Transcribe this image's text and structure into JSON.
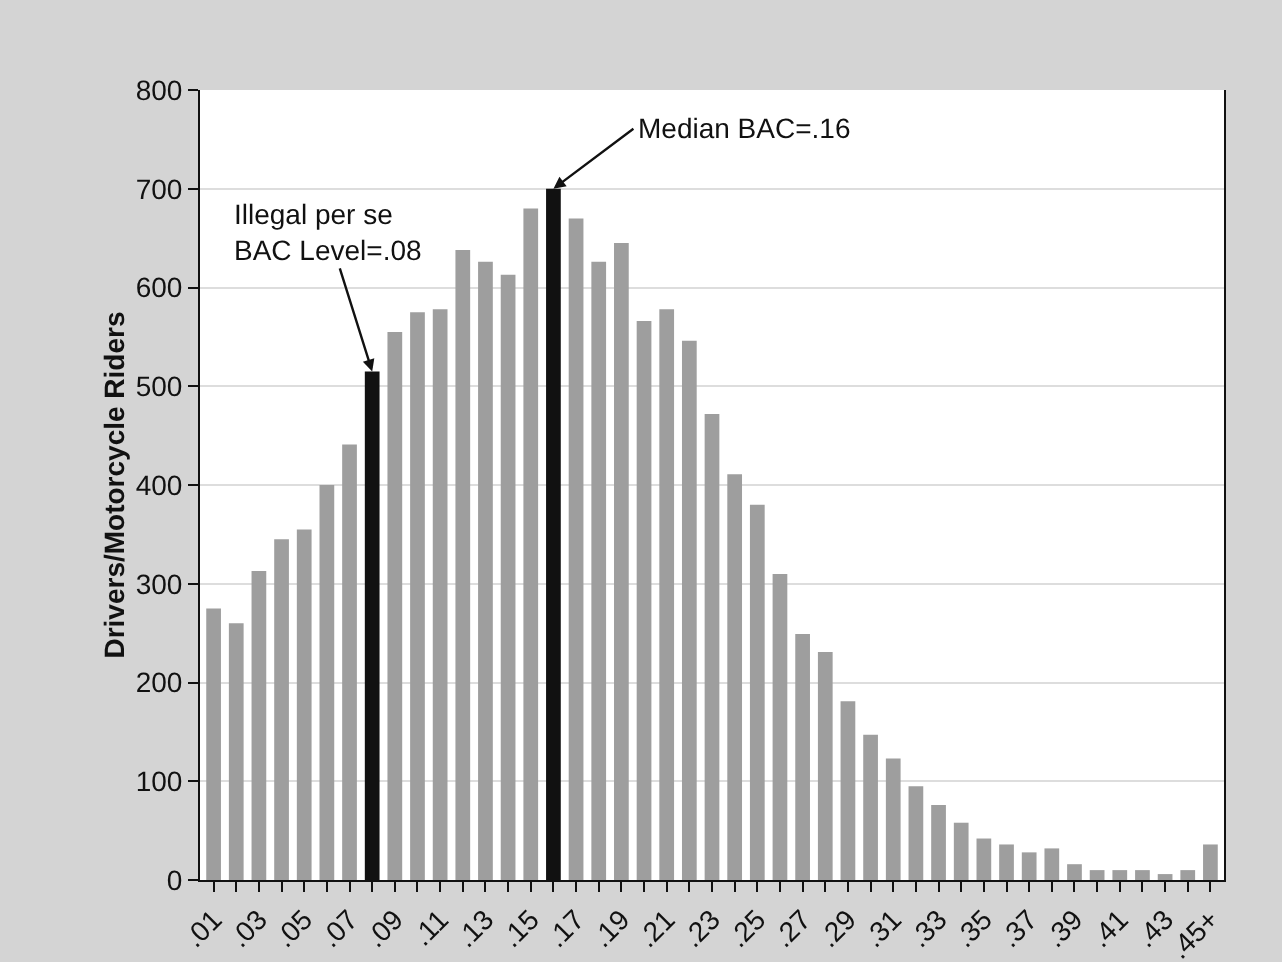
{
  "chart_data": {
    "type": "bar",
    "ylabel": "Drivers/Motorcycle Riders",
    "x": [
      0.01,
      0.02,
      0.03,
      0.04,
      0.05,
      0.06,
      0.07,
      0.08,
      0.09,
      0.1,
      0.11,
      0.12,
      0.13,
      0.14,
      0.15,
      0.16,
      0.17,
      0.18,
      0.19,
      0.2,
      0.21,
      0.22,
      0.23,
      0.24,
      0.25,
      0.26,
      0.27,
      0.28,
      0.29,
      0.3,
      0.31,
      0.32,
      0.33,
      0.34,
      0.35,
      0.36,
      0.37,
      0.38,
      0.39,
      0.4,
      0.41,
      0.42,
      0.43,
      0.44,
      0.45
    ],
    "values": [
      275,
      260,
      313,
      345,
      355,
      400,
      441,
      515,
      555,
      575,
      578,
      638,
      626,
      613,
      680,
      700,
      670,
      626,
      645,
      566,
      578,
      546,
      472,
      411,
      380,
      310,
      249,
      231,
      181,
      147,
      123,
      95,
      76,
      58,
      42,
      36,
      28,
      32,
      16,
      10,
      10,
      10,
      6,
      10,
      36
    ],
    "colors": [
      "#9e9e9e",
      "#9e9e9e",
      "#9e9e9e",
      "#9e9e9e",
      "#9e9e9e",
      "#9e9e9e",
      "#9e9e9e",
      "#111111",
      "#9e9e9e",
      "#9e9e9e",
      "#9e9e9e",
      "#9e9e9e",
      "#9e9e9e",
      "#9e9e9e",
      "#9e9e9e",
      "#111111",
      "#9e9e9e",
      "#9e9e9e",
      "#9e9e9e",
      "#9e9e9e",
      "#9e9e9e",
      "#9e9e9e",
      "#9e9e9e",
      "#9e9e9e",
      "#9e9e9e",
      "#9e9e9e",
      "#9e9e9e",
      "#9e9e9e",
      "#9e9e9e",
      "#9e9e9e",
      "#9e9e9e",
      "#9e9e9e",
      "#9e9e9e",
      "#9e9e9e",
      "#9e9e9e",
      "#9e9e9e",
      "#9e9e9e",
      "#9e9e9e",
      "#9e9e9e",
      "#9e9e9e",
      "#9e9e9e",
      "#9e9e9e",
      "#9e9e9e",
      "#9e9e9e",
      "#9e9e9e"
    ],
    "xlim": [
      0.004,
      0.456
    ],
    "xticks": [
      {
        "value": 0.01,
        "label": ".01"
      },
      {
        "value": 0.02,
        "label": null
      },
      {
        "value": 0.03,
        "label": ".03"
      },
      {
        "value": 0.04,
        "label": null
      },
      {
        "value": 0.05,
        "label": ".05"
      },
      {
        "value": 0.06,
        "label": null
      },
      {
        "value": 0.07,
        "label": ".07"
      },
      {
        "value": 0.08,
        "label": null
      },
      {
        "value": 0.09,
        "label": ".09"
      },
      {
        "value": 0.1,
        "label": null
      },
      {
        "value": 0.11,
        "label": ".11"
      },
      {
        "value": 0.12,
        "label": null
      },
      {
        "value": 0.13,
        "label": ".13"
      },
      {
        "value": 0.14,
        "label": null
      },
      {
        "value": 0.15,
        "label": ".15"
      },
      {
        "value": 0.16,
        "label": null
      },
      {
        "value": 0.17,
        "label": ".17"
      },
      {
        "value": 0.18,
        "label": null
      },
      {
        "value": 0.19,
        "label": ".19"
      },
      {
        "value": 0.2,
        "label": null
      },
      {
        "value": 0.21,
        "label": ".21"
      },
      {
        "value": 0.22,
        "label": null
      },
      {
        "value": 0.23,
        "label": ".23"
      },
      {
        "value": 0.24,
        "label": null
      },
      {
        "value": 0.25,
        "label": ".25"
      },
      {
        "value": 0.26,
        "label": null
      },
      {
        "value": 0.27,
        "label": ".27"
      },
      {
        "value": 0.28,
        "label": null
      },
      {
        "value": 0.29,
        "label": ".29"
      },
      {
        "value": 0.3,
        "label": null
      },
      {
        "value": 0.31,
        "label": ".31"
      },
      {
        "value": 0.32,
        "label": null
      },
      {
        "value": 0.33,
        "label": ".33"
      },
      {
        "value": 0.34,
        "label": null
      },
      {
        "value": 0.35,
        "label": ".35"
      },
      {
        "value": 0.36,
        "label": null
      },
      {
        "value": 0.37,
        "label": ".37"
      },
      {
        "value": 0.38,
        "label": null
      },
      {
        "value": 0.39,
        "label": ".39"
      },
      {
        "value": 0.4,
        "label": null
      },
      {
        "value": 0.41,
        "label": ".41"
      },
      {
        "value": 0.42,
        "label": null
      },
      {
        "value": 0.43,
        "label": ".43"
      },
      {
        "value": 0.44,
        "label": null
      },
      {
        "value": 0.45,
        "label": ".45+"
      }
    ],
    "ylim": [
      0,
      800
    ],
    "yticks": [
      0,
      100,
      200,
      300,
      400,
      500,
      600,
      700,
      800
    ],
    "grid": "y",
    "annotations": [
      {
        "text": "Illegal per se\nBAC Level=.08",
        "x": 0.08,
        "y": 515
      },
      {
        "text": "Median BAC=.16",
        "x": 0.16,
        "y": 700
      }
    ]
  }
}
